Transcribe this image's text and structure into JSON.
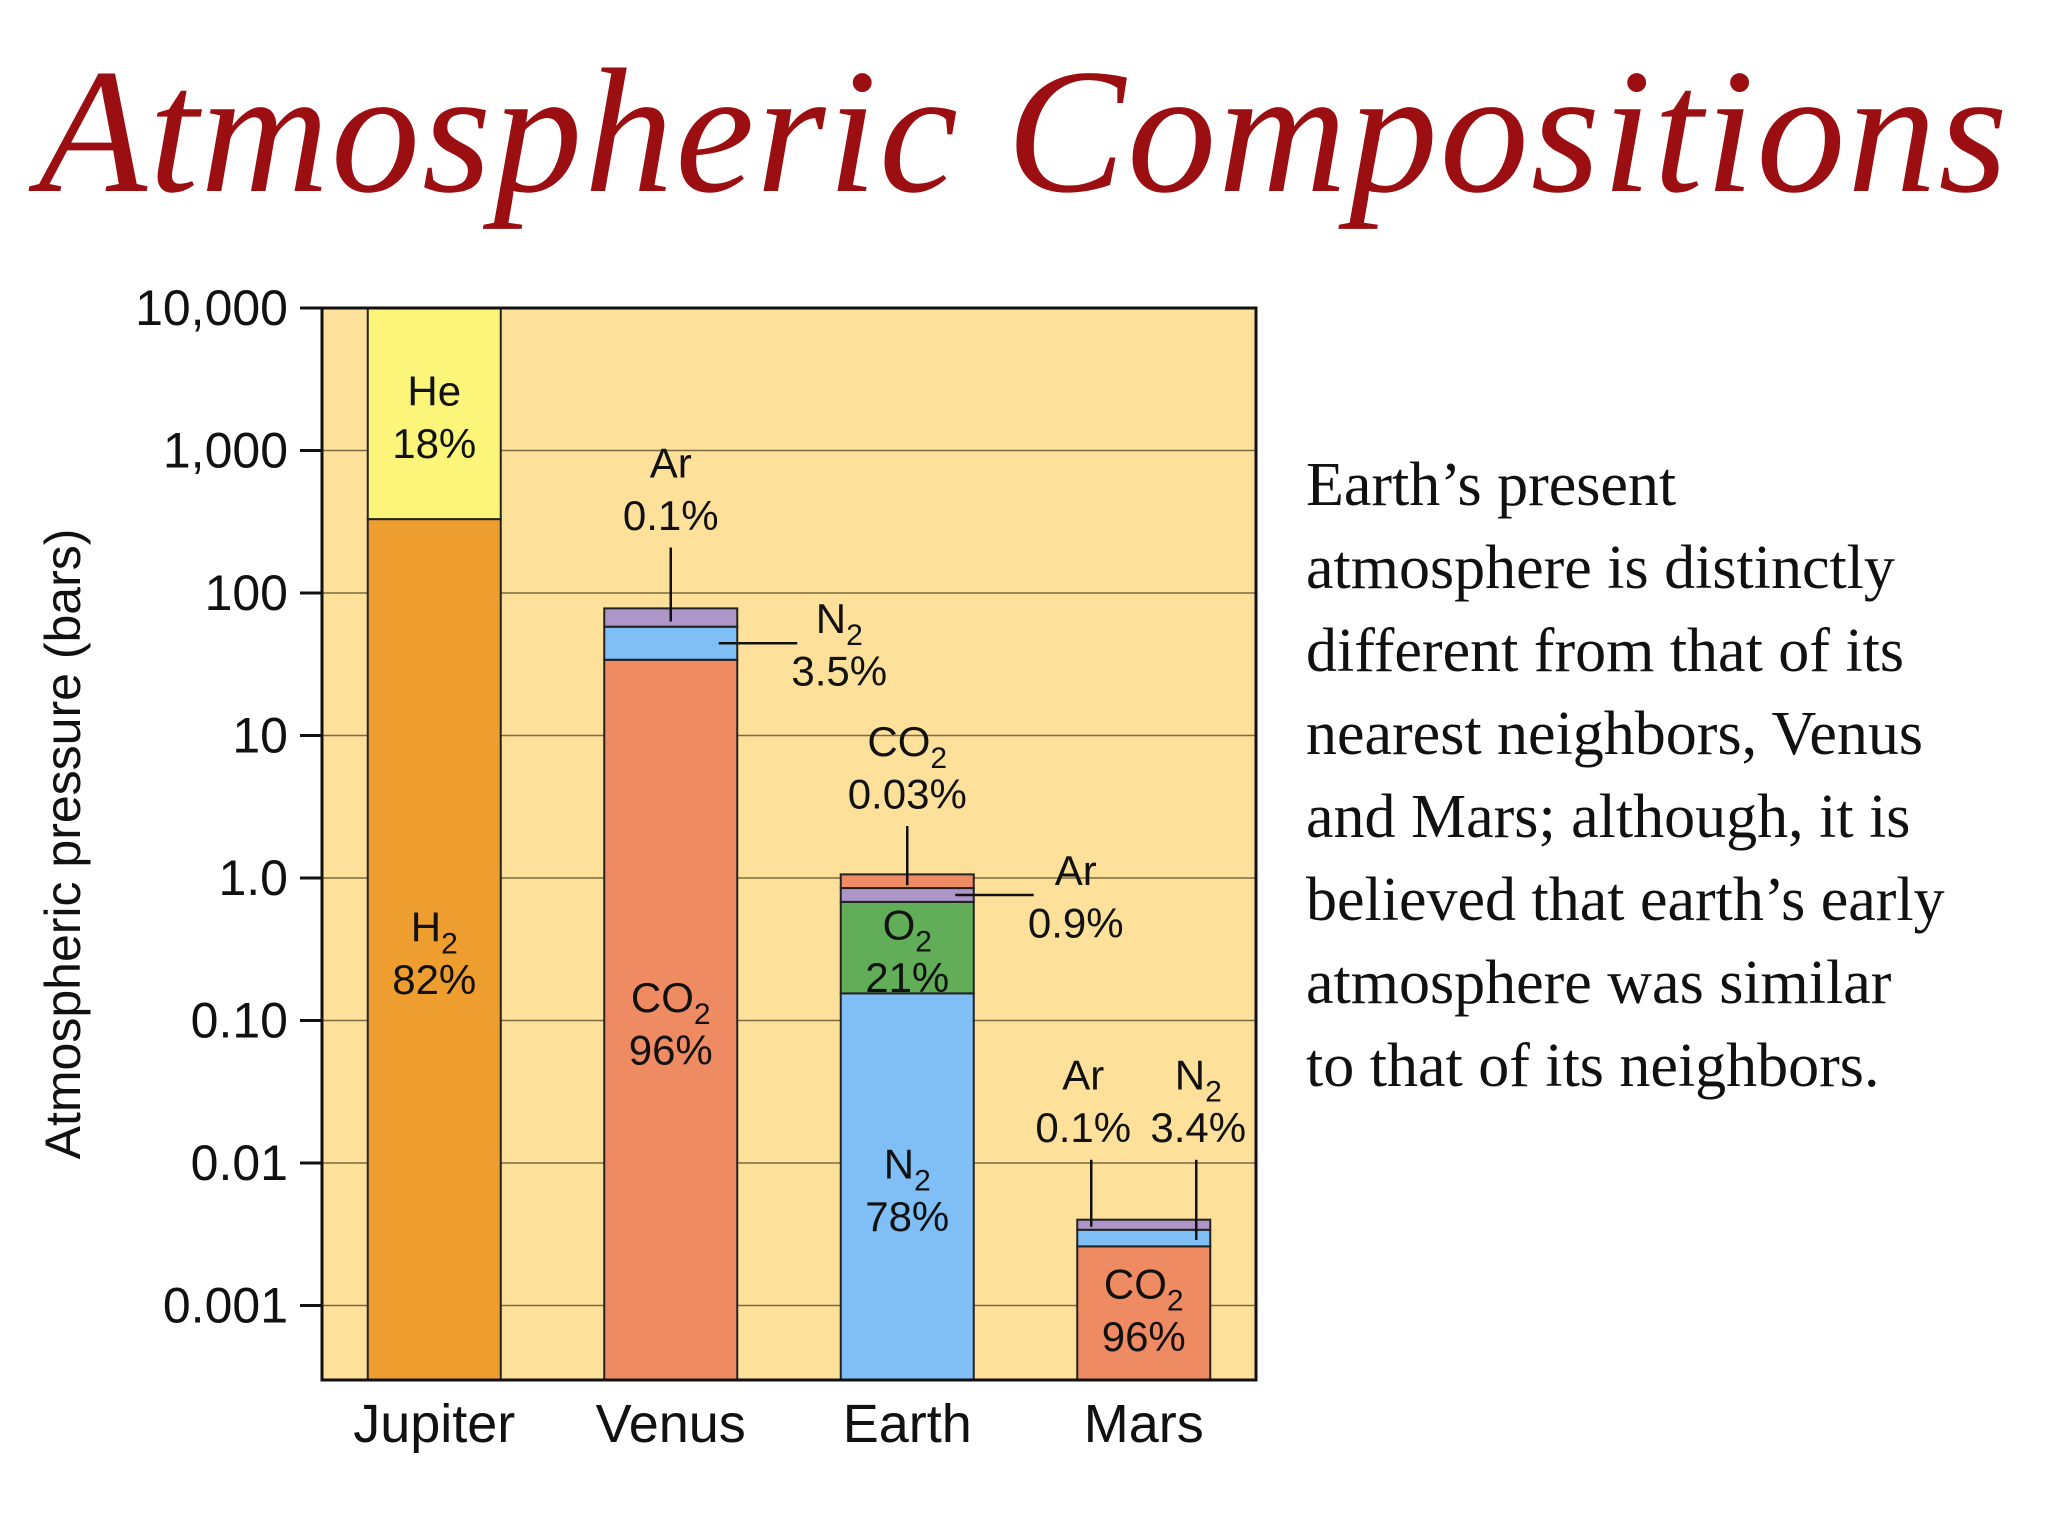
{
  "slide": {
    "title": "Atmospheric Compositions",
    "body_lines": [
      "Earth’s present",
      "atmosphere is distinctly",
      "different from that of its",
      "nearest neighbors, Venus",
      "and Mars; although, it is",
      "believed that earth’s early",
      "atmosphere was similar",
      "to that of its neighbors."
    ]
  },
  "chart_data": {
    "type": "bar",
    "stacked": true,
    "ylabel": "Atmospheric pressure (bars)",
    "yscale": "log",
    "ylim": [
      0.0003,
      10000
    ],
    "yticks": [
      {
        "value": 10000,
        "label": "10,000"
      },
      {
        "value": 1000,
        "label": "1,000"
      },
      {
        "value": 100,
        "label": "100"
      },
      {
        "value": 10,
        "label": "10"
      },
      {
        "value": 1.0,
        "label": "1.0"
      },
      {
        "value": 0.1,
        "label": "0.10"
      },
      {
        "value": 0.01,
        "label": "0.01"
      },
      {
        "value": 0.001,
        "label": "0.001"
      }
    ],
    "grid": true,
    "colors": {
      "background": "#fde09a",
      "grid": "#7a6a40",
      "H2": "#ee9e2f",
      "He": "#fbf67a",
      "CO2": "#ef8b62",
      "N2": "#7fbff6",
      "Ar": "#ae97c8",
      "O2": "#62ae58"
    },
    "categories": [
      "Jupiter",
      "Venus",
      "Earth",
      "Mars"
    ],
    "bars": [
      {
        "planet": "Jupiter",
        "total_pressure": 10000,
        "segments": [
          {
            "gas": "H2",
            "symbol": "H",
            "sub": "2",
            "percent_label": "82%",
            "bottom": 0.0003,
            "top": 330,
            "label_pos": "inside"
          },
          {
            "gas": "He",
            "symbol": "He",
            "sub": "",
            "percent_label": "18%",
            "bottom": 330,
            "top": 10000,
            "label_pos": "inside"
          }
        ]
      },
      {
        "planet": "Venus",
        "total_pressure": 90,
        "segments": [
          {
            "gas": "CO2",
            "symbol": "CO",
            "sub": "2",
            "percent_label": "96%",
            "bottom": 0.0003,
            "top": 34,
            "label_pos": "inside"
          },
          {
            "gas": "N2",
            "symbol": "N",
            "sub": "2",
            "percent_label": "3.5%",
            "bottom": 34,
            "top": 58,
            "label_pos": "callout-right"
          },
          {
            "gas": "Ar",
            "symbol": "Ar",
            "sub": "",
            "percent_label": "0.1%",
            "bottom": 58,
            "top": 78,
            "label_pos": "callout-above"
          }
        ]
      },
      {
        "planet": "Earth",
        "total_pressure": 1.0,
        "segments": [
          {
            "gas": "N2",
            "symbol": "N",
            "sub": "2",
            "percent_label": "78%",
            "bottom": 0.0003,
            "top": 0.155,
            "label_pos": "inside"
          },
          {
            "gas": "O2",
            "symbol": "O",
            "sub": "2",
            "percent_label": "21%",
            "bottom": 0.155,
            "top": 0.68,
            "label_pos": "inside"
          },
          {
            "gas": "Ar",
            "symbol": "Ar",
            "sub": "",
            "percent_label": "0.9%",
            "bottom": 0.68,
            "top": 0.85,
            "label_pos": "callout-right"
          },
          {
            "gas": "CO2",
            "symbol": "CO",
            "sub": "2",
            "percent_label": "0.03%",
            "bottom": 0.85,
            "top": 1.06,
            "label_pos": "callout-above"
          }
        ]
      },
      {
        "planet": "Mars",
        "total_pressure": 0.004,
        "segments": [
          {
            "gas": "CO2",
            "symbol": "CO",
            "sub": "2",
            "percent_label": "96%",
            "bottom": 0.0003,
            "top": 0.0026,
            "label_pos": "inside"
          },
          {
            "gas": "N2",
            "symbol": "N",
            "sub": "2",
            "percent_label": "3.4%",
            "bottom": 0.0026,
            "top": 0.0034,
            "label_pos": "callout-above-right"
          },
          {
            "gas": "Ar",
            "symbol": "Ar",
            "sub": "",
            "percent_label": "0.1%",
            "bottom": 0.0034,
            "top": 0.004,
            "label_pos": "callout-above-left"
          }
        ]
      }
    ]
  }
}
